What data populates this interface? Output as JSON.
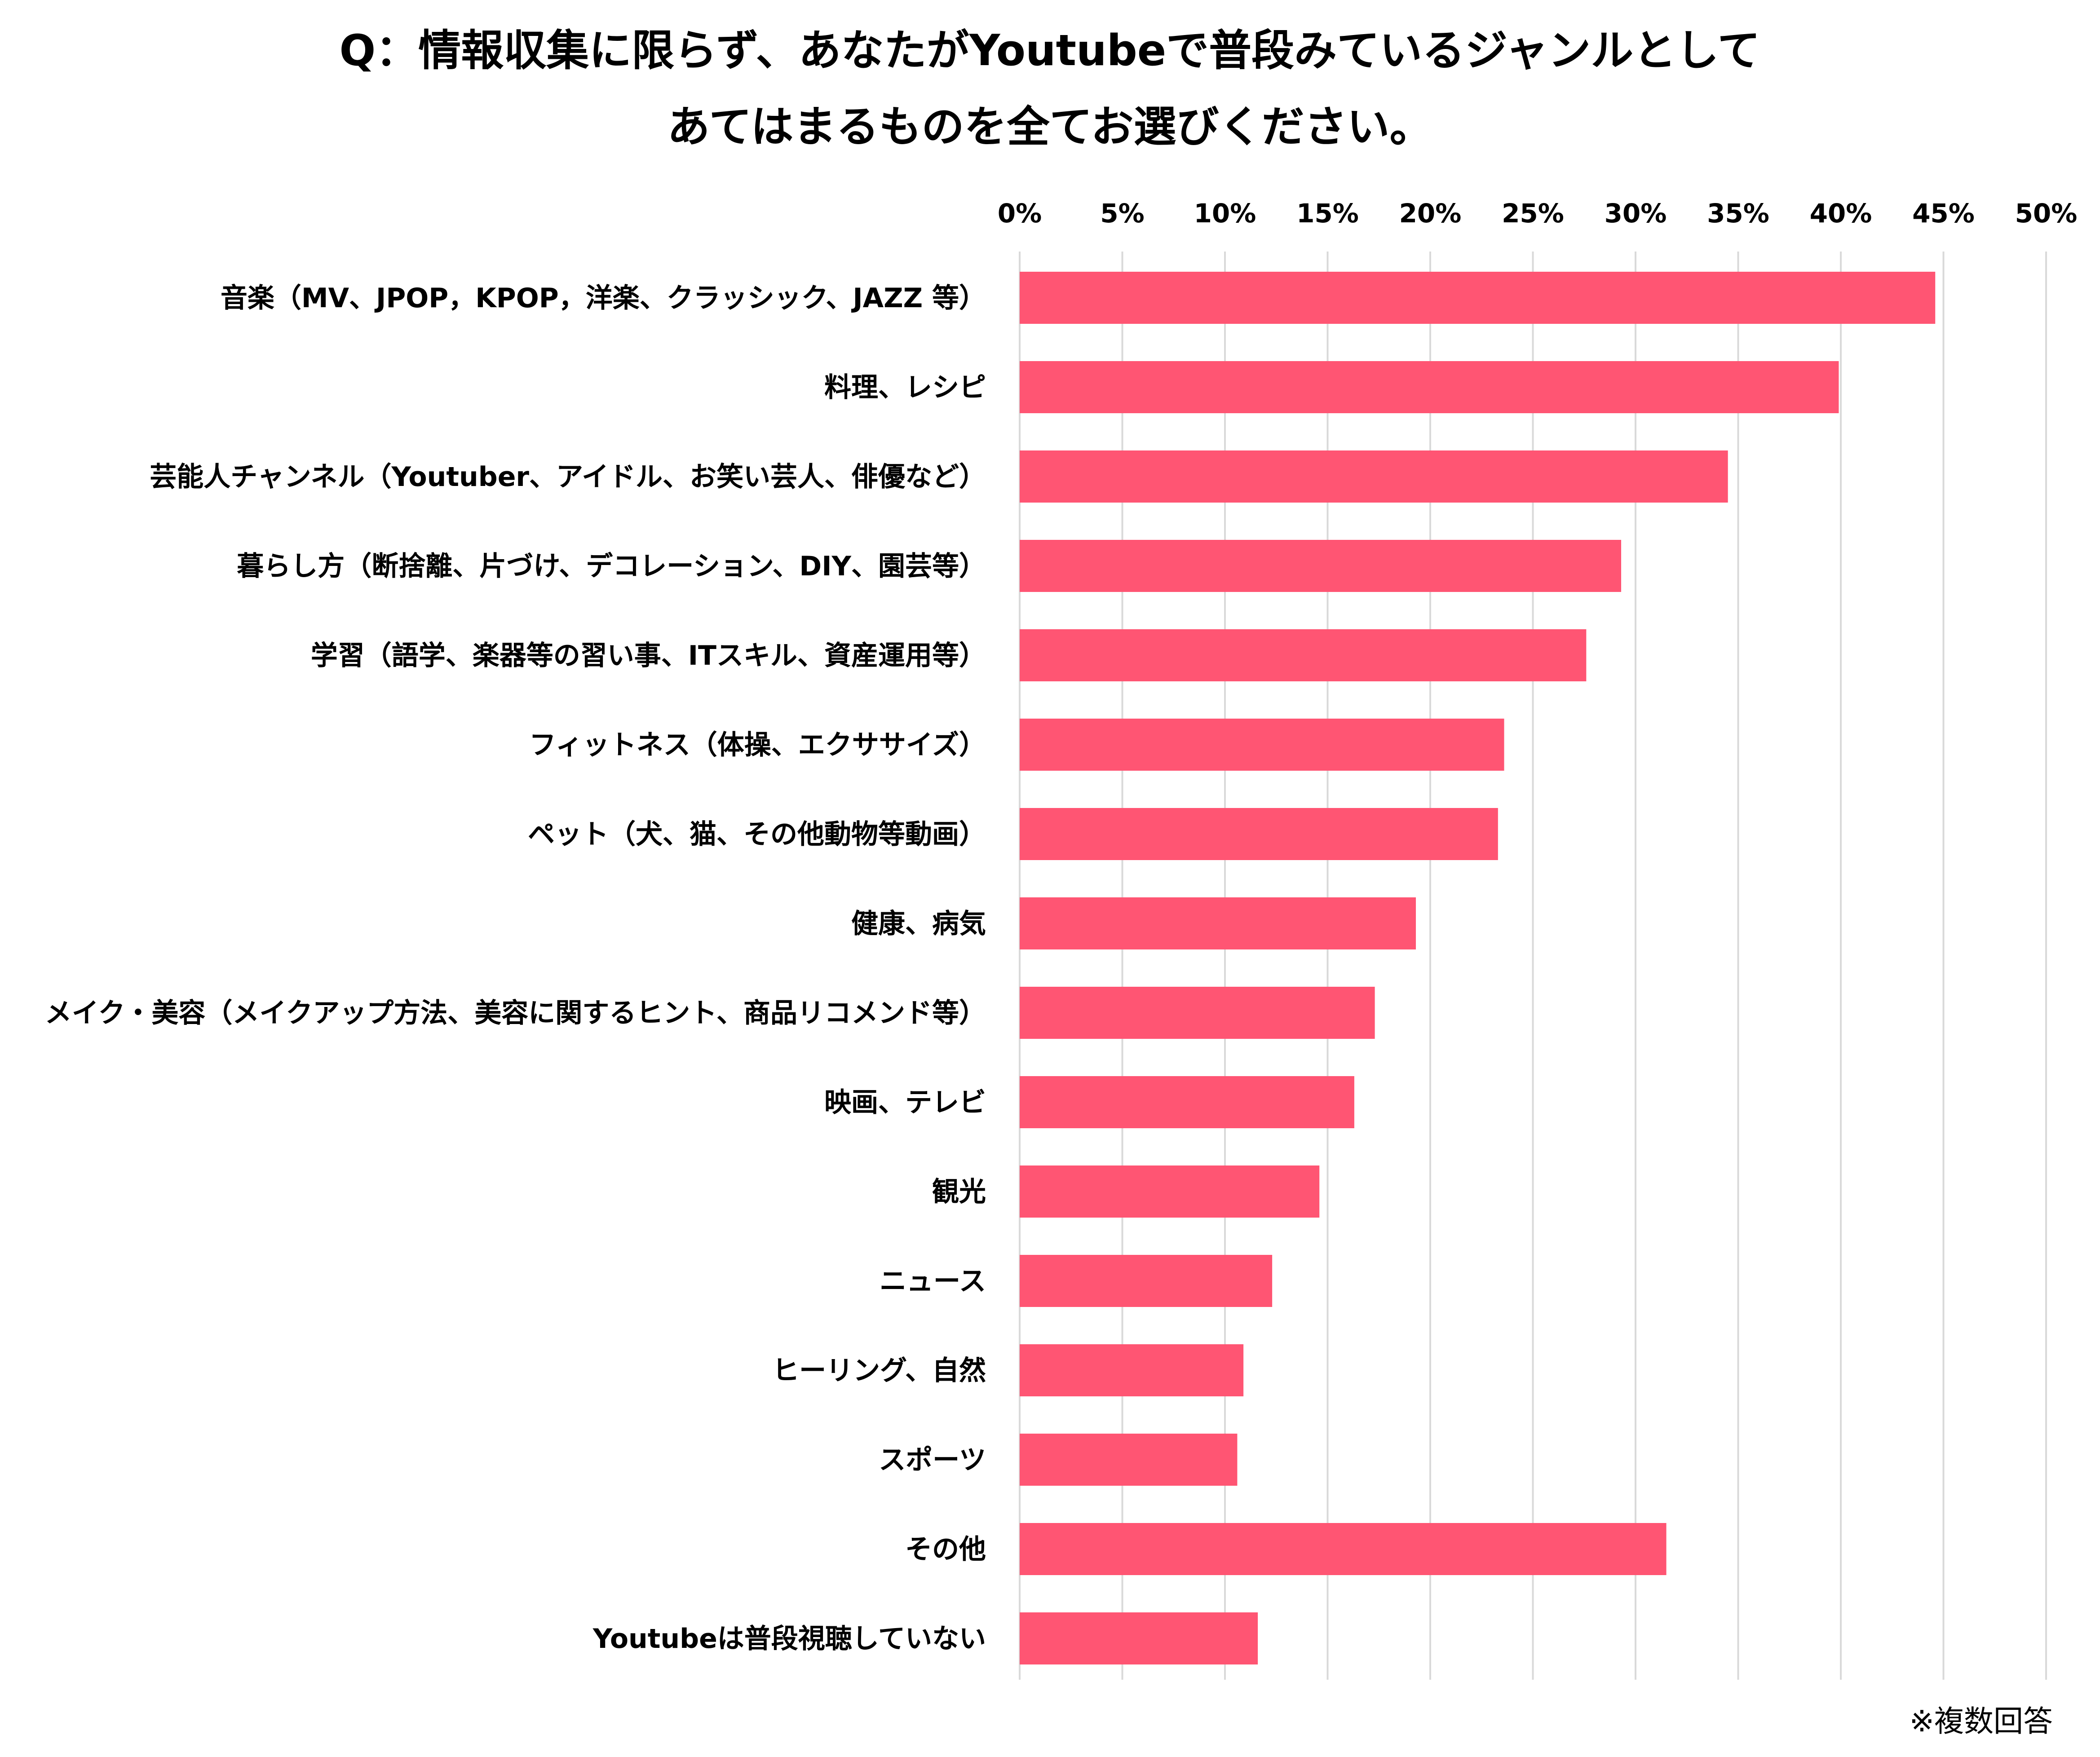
{
  "chart_data": {
    "type": "bar",
    "orientation": "horizontal",
    "title_lines": [
      "Q：情報収集に限らず、あなたがYoutubeで普段みているジャンルとして",
      "あてはまるものを全てお選びください。"
    ],
    "note": "※複数回答",
    "xlim": [
      0,
      50
    ],
    "x_ticks": [
      0,
      5,
      10,
      15,
      20,
      25,
      30,
      35,
      40,
      45,
      50
    ],
    "x_tick_labels": [
      "0%",
      "5%",
      "10%",
      "15%",
      "20%",
      "25%",
      "30%",
      "35%",
      "40%",
      "45%",
      "50%"
    ],
    "grid": true,
    "categories": [
      "音楽（MV、JPOP，KPOP，洋楽、クラッシック、JAZZ 等）",
      "料理、レシピ",
      "芸能人チャンネル（Youtuber、アイドル、お笑い芸人、俳優など）",
      "暮らし方（断捨離、片づけ、デコレーション、DIY、園芸等）",
      "学習（語学、楽器等の習い事、ITスキル、資産運用等）",
      "フィットネス（体操、エクササイズ）",
      "ペット（犬、猫、その他動物等動画）",
      "健康、病気",
      "メイク・美容（メイクアップ方法、美容に関するヒント、商品リコメンド等）",
      "映画、テレビ",
      "観光",
      "ニュース",
      "ヒーリング、自然",
      "スポーツ",
      "その他",
      "Youtubeは普段視聴していない"
    ],
    "values": [
      44.6,
      39.9,
      34.5,
      29.3,
      27.6,
      23.6,
      23.3,
      19.3,
      17.3,
      16.3,
      14.6,
      12.3,
      10.9,
      10.6,
      31.5,
      11.6
    ],
    "bar_color": "#ff5573"
  }
}
